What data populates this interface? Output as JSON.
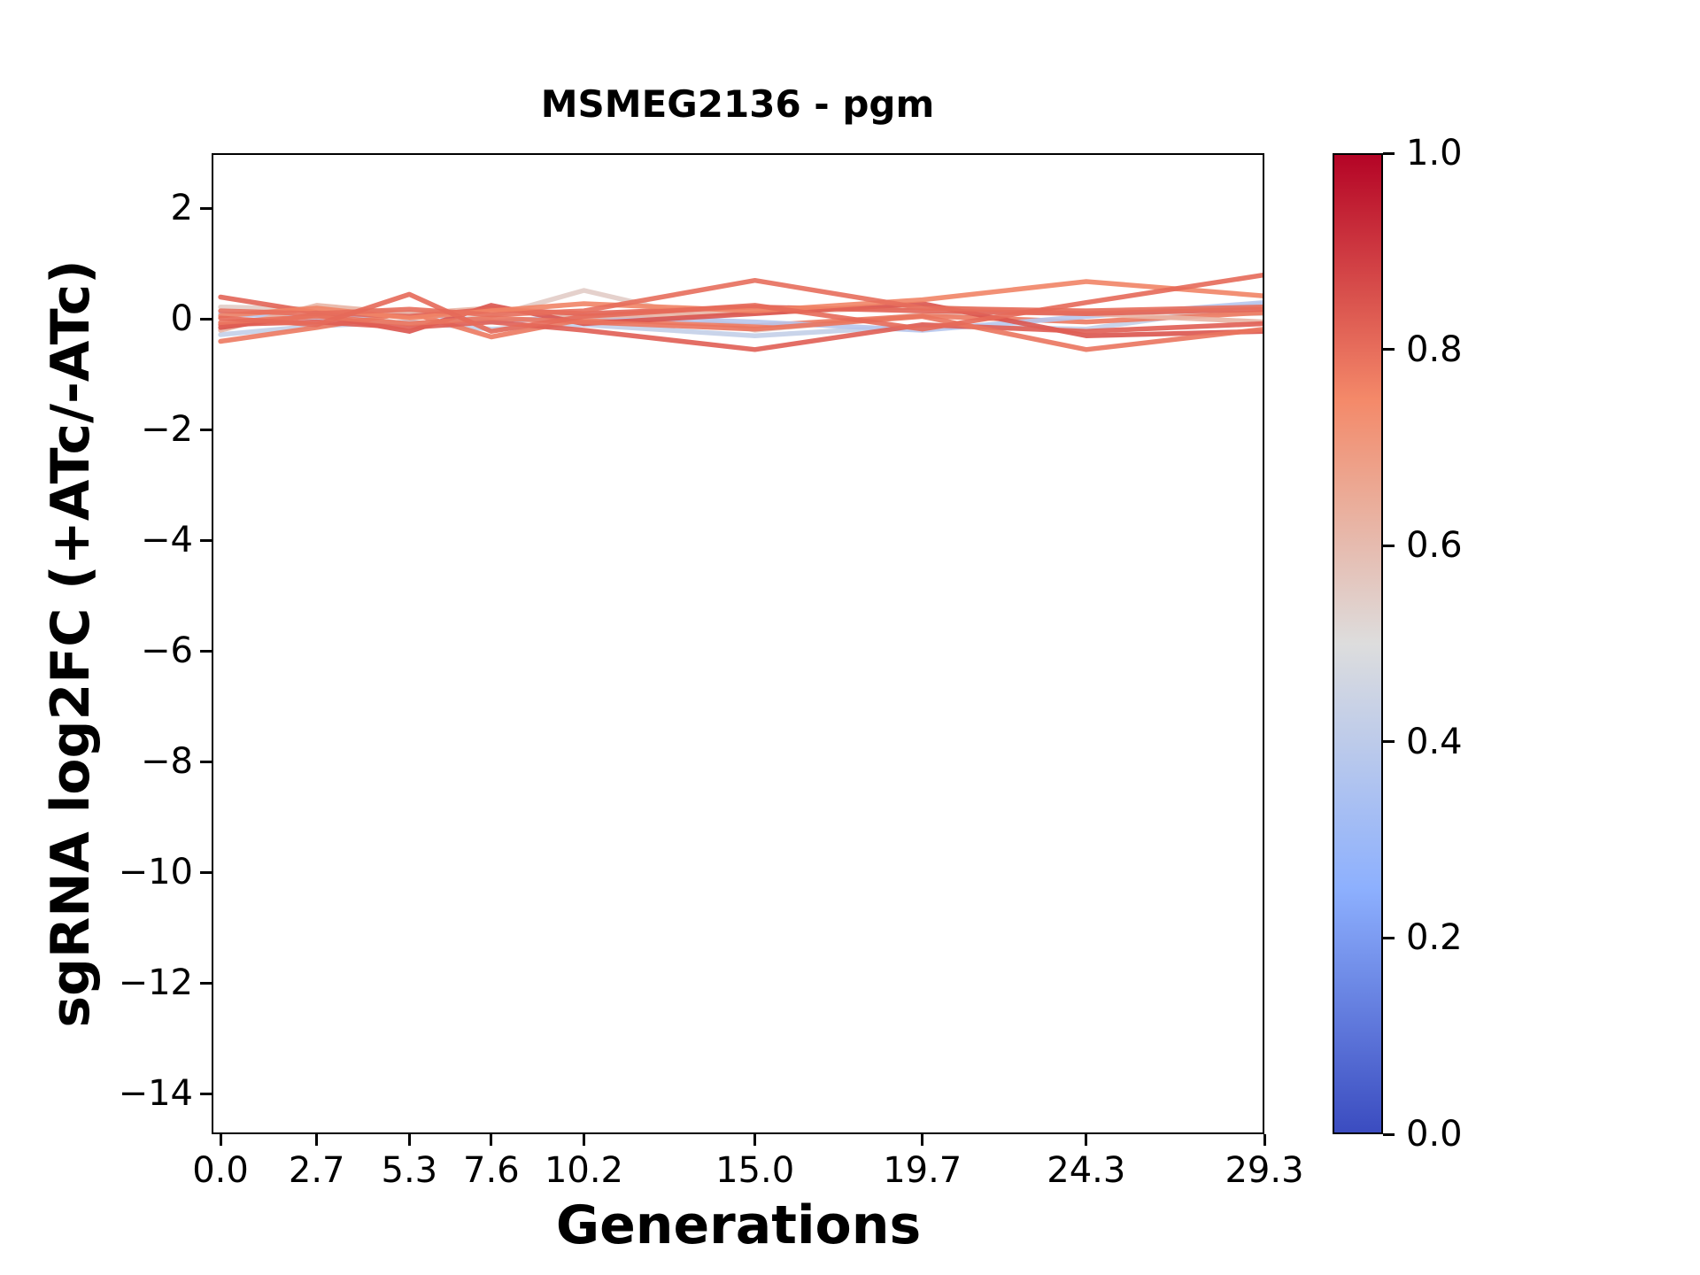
{
  "title": "MSMEG2136 - pgm",
  "chart_data": {
    "type": "line",
    "title": "MSMEG2136 - pgm",
    "xlabel": "Generations",
    "ylabel": "sgRNA log2FC (+ATc/-ATc)",
    "x": [
      0.0,
      2.7,
      5.3,
      7.6,
      10.2,
      15.0,
      19.7,
      24.3,
      29.3
    ],
    "x_tick_labels": [
      "0.0",
      "2.7",
      "5.3",
      "7.6",
      "10.2",
      "15.0",
      "19.7",
      "24.3",
      "29.3"
    ],
    "y_ticks": [
      2,
      0,
      -2,
      -4,
      -6,
      -8,
      -10,
      -12,
      -14
    ],
    "y_tick_labels": [
      "2",
      "0",
      "−2",
      "−4",
      "−6",
      "−8",
      "−10",
      "−12",
      "−14"
    ],
    "xlim": [
      -0.25,
      29.3
    ],
    "ylim": [
      -14.73,
      3.0
    ],
    "grid": false,
    "legend": "none",
    "colormap": "coolwarm",
    "line_width": 5.5,
    "line_opacity": 0.9,
    "series": [
      {
        "colormap_value": 0.42,
        "values": [
          -0.28,
          -0.12,
          -0.05,
          -0.18,
          -0.1,
          -0.3,
          -0.12,
          -0.18,
          0.28
        ]
      },
      {
        "colormap_value": 0.55,
        "values": [
          0.22,
          0.18,
          -0.1,
          0.05,
          0.52,
          -0.2,
          0.08,
          0.15,
          0.1
        ]
      },
      {
        "colormap_value": 0.78,
        "values": [
          -0.4,
          -0.15,
          0.12,
          -0.32,
          0.0,
          -0.12,
          0.06,
          -0.05,
          0.12
        ]
      },
      {
        "colormap_value": 0.38,
        "values": [
          0.1,
          0.02,
          0.12,
          -0.05,
          0.06,
          -0.05,
          -0.2,
          0.05,
          0.3
        ]
      },
      {
        "colormap_value": 0.62,
        "values": [
          -0.2,
          0.25,
          0.1,
          0.2,
          0.05,
          0.12,
          0.22,
          0.1,
          -0.05
        ]
      },
      {
        "colormap_value": 0.85,
        "values": [
          -0.15,
          0.08,
          -0.22,
          0.25,
          -0.08,
          0.1,
          0.28,
          -0.3,
          -0.22
        ]
      },
      {
        "colormap_value": 0.83,
        "values": [
          -0.1,
          -0.05,
          -0.15,
          -0.05,
          -0.2,
          -0.55,
          -0.1,
          -0.22,
          -0.08
        ]
      },
      {
        "colormap_value": 0.79,
        "values": [
          -0.06,
          0.05,
          -0.08,
          0.02,
          -0.05,
          -0.18,
          0.05,
          -0.55,
          -0.18
        ]
      },
      {
        "colormap_value": 0.82,
        "values": [
          0.4,
          0.12,
          0.05,
          0.18,
          0.1,
          0.22,
          0.15,
          0.1,
          0.18
        ]
      },
      {
        "colormap_value": 0.76,
        "values": [
          0.06,
          0.2,
          0.02,
          0.15,
          0.28,
          0.15,
          0.35,
          0.68,
          0.42
        ]
      },
      {
        "colormap_value": 0.8,
        "values": [
          0.15,
          0.1,
          0.18,
          0.08,
          0.15,
          0.7,
          0.2,
          0.15,
          0.22
        ]
      },
      {
        "colormap_value": 0.81,
        "values": [
          0.02,
          -0.1,
          0.45,
          -0.22,
          0.05,
          0.25,
          -0.18,
          0.3,
          0.8
        ]
      }
    ],
    "colorbar": {
      "min": 0.0,
      "max": 1.0,
      "tick_values": [
        1.0,
        0.8,
        0.6,
        0.4,
        0.2,
        0.0
      ],
      "tick_labels": [
        "1.0",
        "0.8",
        "0.6",
        "0.4",
        "0.2",
        "0.0"
      ],
      "orientation": "vertical",
      "position": "right"
    }
  },
  "colors": {
    "background": "#FFFFFF",
    "axis": "#000000",
    "coolwarm_anchors": [
      {
        "t": 0.0,
        "hex": "#3B4CC0"
      },
      {
        "t": 0.25,
        "hex": "#8DB0FE"
      },
      {
        "t": 0.5,
        "hex": "#DDDDDD"
      },
      {
        "t": 0.75,
        "hex": "#F48969"
      },
      {
        "t": 1.0,
        "hex": "#B40426"
      }
    ]
  }
}
